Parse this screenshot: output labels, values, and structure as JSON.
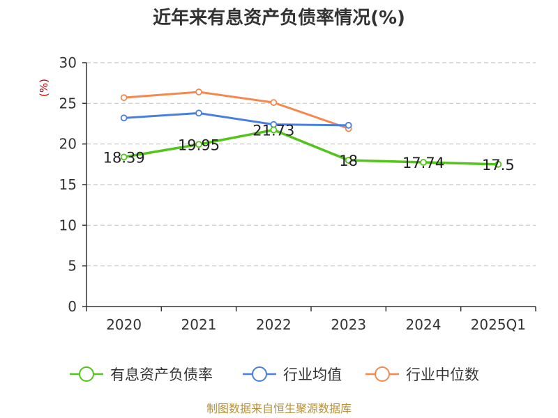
{
  "chart_data": {
    "type": "line",
    "title": "近年来有息资产负债率情况(%)",
    "ylabel": "(%)",
    "categories": [
      "2020",
      "2021",
      "2022",
      "2023",
      "2024",
      "2025Q1"
    ],
    "ylim": [
      0,
      30
    ],
    "yticks": [
      0,
      5,
      10,
      15,
      20,
      25,
      30
    ],
    "grid": true,
    "legend_position": "bottom",
    "series": [
      {
        "name": "有息资产负债率",
        "color": "#52c41a",
        "values": [
          18.39,
          19.95,
          21.73,
          18,
          17.74,
          17.5
        ],
        "labels": [
          "18.39",
          "19.95",
          "21.73",
          "18",
          "17.74",
          "17.5"
        ]
      },
      {
        "name": "行业均值",
        "color": "#4a7fe0",
        "values": [
          23.2,
          23.8,
          22.4,
          22.3,
          null,
          null
        ]
      },
      {
        "name": "行业中位数",
        "color": "#f4884d",
        "values": [
          25.7,
          26.4,
          25.1,
          21.9,
          null,
          null
        ]
      }
    ]
  },
  "source_text": "制图数据来自恒生聚源数据库"
}
